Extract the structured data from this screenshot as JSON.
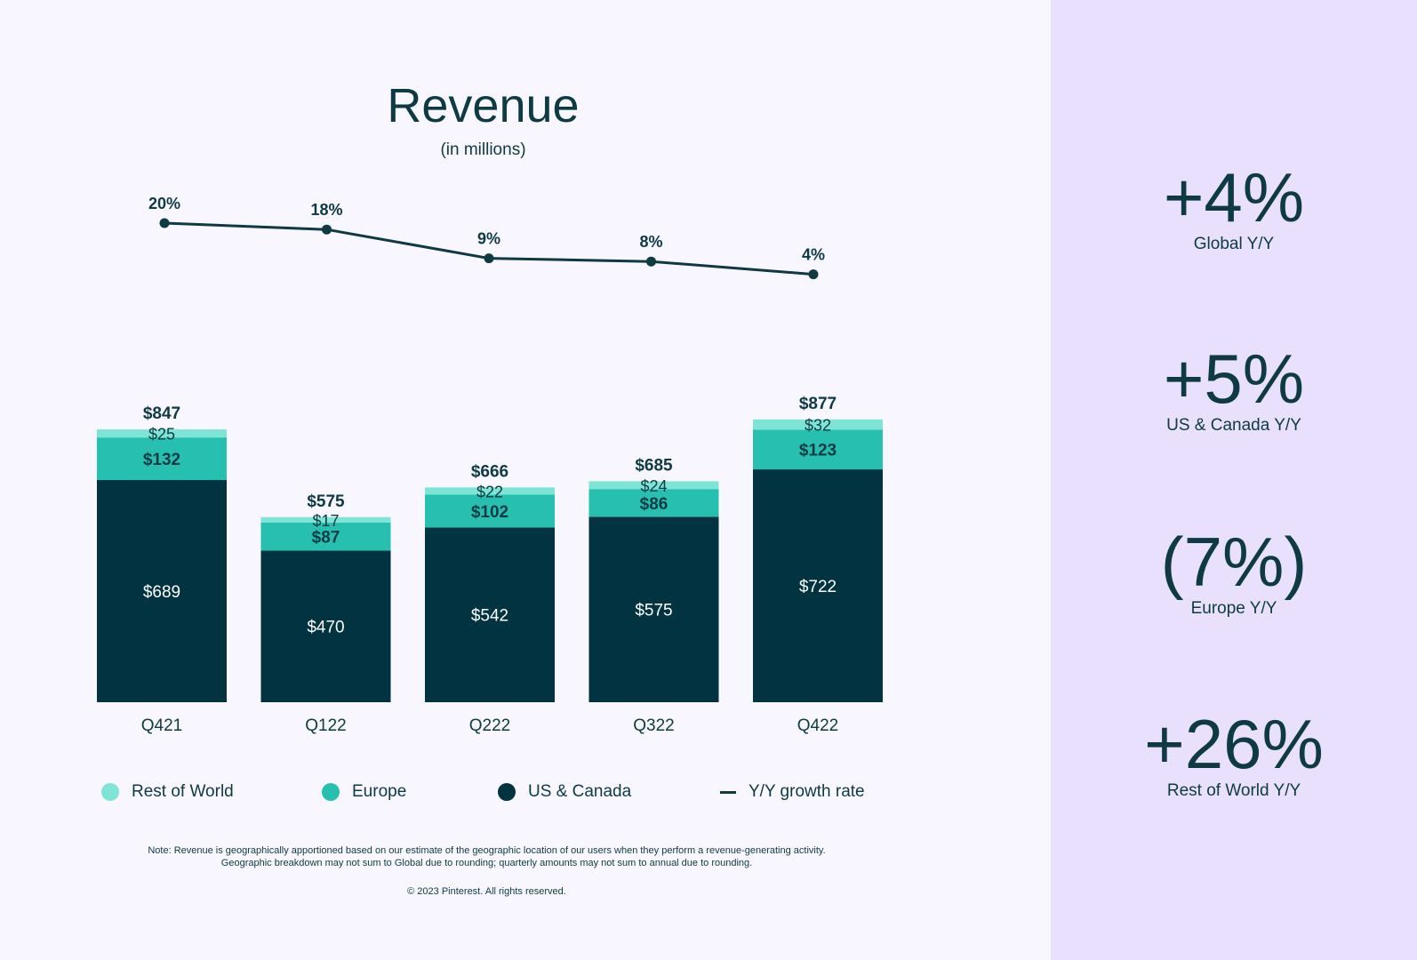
{
  "chart_data": {
    "type": "bar",
    "stacked": true,
    "title": "Revenue",
    "subtitle": "(in millions)",
    "categories": [
      "Q421",
      "Q122",
      "Q222",
      "Q322",
      "Q422"
    ],
    "series": [
      {
        "name": "US & Canada",
        "color": "#013440",
        "values": [
          689,
          470,
          542,
          575,
          722
        ],
        "labels": [
          "$689",
          "$470",
          "$542",
          "$575",
          "$722"
        ]
      },
      {
        "name": "Europe",
        "color": "#27c0b0",
        "values": [
          132,
          87,
          102,
          86,
          123
        ],
        "labels": [
          "$132",
          "$87",
          "$102",
          "$86",
          "$123"
        ]
      },
      {
        "name": "Rest of World",
        "color": "#7ee4d6",
        "values": [
          25,
          17,
          22,
          24,
          32
        ],
        "labels": [
          "$25",
          "$17",
          "$22",
          "$24",
          "$32"
        ]
      }
    ],
    "totals": [
      847,
      575,
      666,
      685,
      877
    ],
    "total_labels": [
      "$847",
      "$575",
      "$666",
      "$685",
      "$877"
    ],
    "growth": {
      "name": "Y/Y growth rate",
      "values": [
        20,
        18,
        9,
        8,
        4
      ],
      "labels": [
        "20%",
        "18%",
        "9%",
        "8%",
        "4%"
      ]
    },
    "legend": [
      "Rest of World",
      "Europe",
      "US & Canada",
      "Y/Y growth rate"
    ]
  },
  "note_line1": "Note: Revenue is geographically apportioned based on our estimate of the geographic location of our users when they perform a revenue-generating activity.",
  "note_line2": "Geographic breakdown may not sum to Global due to rounding; quarterly amounts may not sum to annual due to rounding.",
  "copyright": "© 2023 Pinterest. All rights reserved.",
  "stats": [
    {
      "value": "+4%",
      "label": "Global Y/Y"
    },
    {
      "value": "+5%",
      "label": "US & Canada Y/Y"
    },
    {
      "value": "(7%)",
      "label": "Europe Y/Y"
    },
    {
      "value": "+26%",
      "label": "Rest of World Y/Y"
    }
  ],
  "colors": {
    "dark": "#013440",
    "teal": "#27c0b0",
    "light_teal": "#7ee4d6",
    "text": "#0e3a44",
    "side_bg": "#e8e0fd",
    "main_bg": "#f8f6ff"
  }
}
